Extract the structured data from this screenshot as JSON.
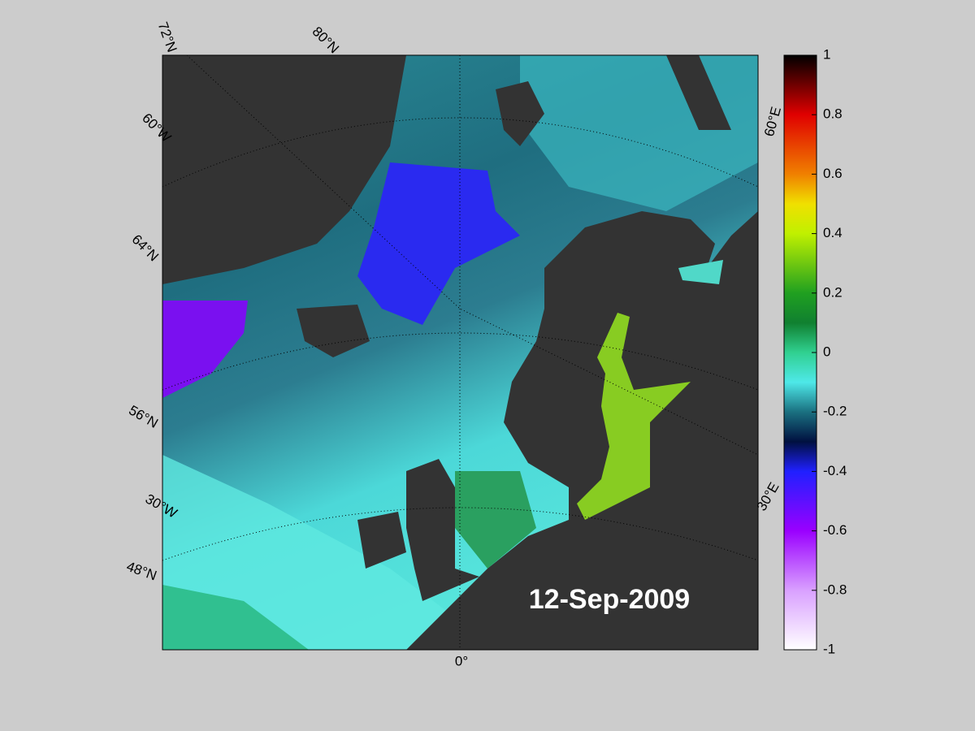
{
  "map": {
    "date_label": "12-Sep-2009",
    "graticule_labels": [
      "72°N",
      "80°N",
      "60°W",
      "64°N",
      "56°N",
      "30°W",
      "48°N",
      "0°",
      "30°E",
      "60°E"
    ]
  },
  "colorbar": {
    "ylim": [
      -1,
      1
    ],
    "yticks": [
      -1,
      -0.8,
      -0.6,
      -0.4,
      -0.2,
      0,
      0.2,
      0.4,
      0.6,
      0.8,
      1
    ]
  }
}
